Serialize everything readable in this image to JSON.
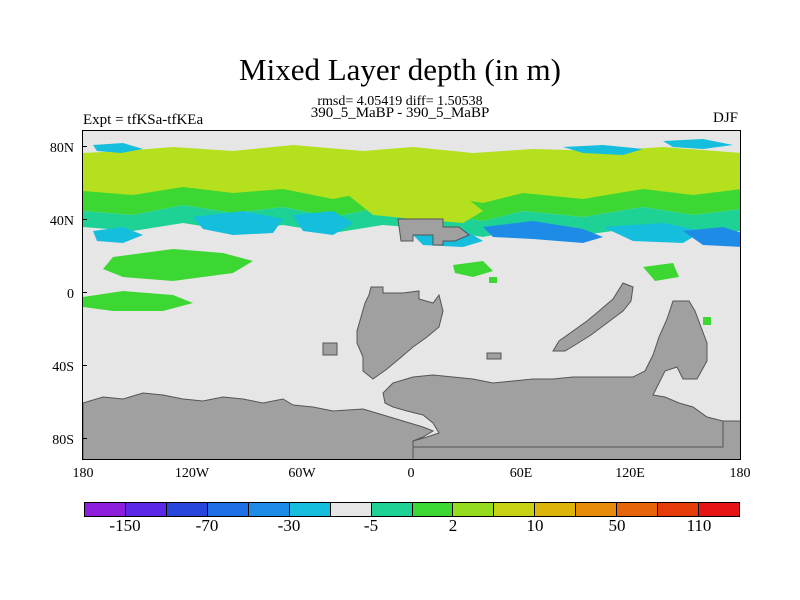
{
  "title": "Mixed Layer depth (in m)",
  "stats": "rmsd= 4.05419 diff= 1.50538",
  "subtitle": "390_5_MaBP - 390_5_MaBP",
  "experiment": "Expt = tfKSa-tfKEa",
  "season": "DJF",
  "colors": {
    "land": "#a0a0a0",
    "neutral": "#e6e6e6",
    "light_green": "#b4e01e",
    "green": "#3cd732",
    "teal": "#1ed296",
    "cyan": "#14bedc",
    "blue": "#1e8ce6"
  },
  "map": {
    "lat_labels": [
      "80N",
      "40N",
      "0",
      "40S",
      "80S"
    ],
    "lon_labels": [
      "180",
      "120W",
      "60W",
      "0",
      "60E",
      "120E",
      "180"
    ]
  },
  "colorbar": {
    "colors": [
      "#8c1edc",
      "#5a28e6",
      "#2846dc",
      "#1e6ee6",
      "#1e8ce6",
      "#14bedc",
      "#e6e6e6",
      "#1ed296",
      "#3cd732",
      "#96dc1e",
      "#c8d214",
      "#dcb40a",
      "#e68c0a",
      "#e6640a",
      "#e63c0a",
      "#e61414"
    ],
    "labels": [
      "-150",
      "-70",
      "-30",
      "-5",
      "2",
      "10",
      "50",
      "110"
    ]
  }
}
